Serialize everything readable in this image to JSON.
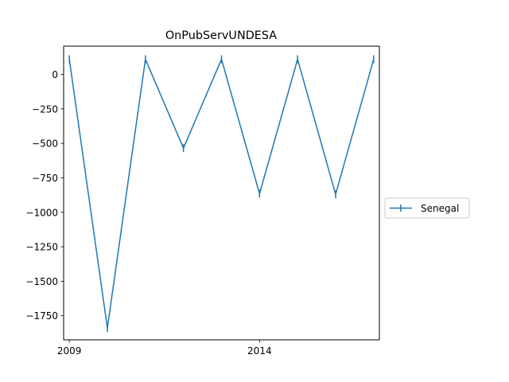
{
  "chart_data": {
    "type": "line",
    "title": "OnPubServUNDESA",
    "xlabel": "",
    "ylabel": "",
    "x": [
      2009,
      2010,
      2011,
      2012,
      2013,
      2014,
      2015,
      2016,
      2017
    ],
    "x_tick_values": [
      2009,
      2014
    ],
    "x_tick_labels": [
      "2009",
      "2014"
    ],
    "y_tick_values": [
      0,
      -250,
      -500,
      -750,
      -1000,
      -1250,
      -1500,
      -1750
    ],
    "y_tick_labels": [
      "0",
      "−250",
      "−500",
      "−750",
      "−1000",
      "−1250",
      "−1500",
      "−1750"
    ],
    "xlim": [
      2008.85,
      2017.15
    ],
    "ylim": [
      -1925,
      205
    ],
    "grid": false,
    "legend_placement": "center-left outside plot (right side)",
    "series": [
      {
        "name": "Senegal",
        "color": "#1f77b4",
        "marker": "vertical-line",
        "values": [
          110,
          -1840,
          110,
          -535,
          110,
          -865,
          110,
          -870,
          110
        ]
      }
    ]
  }
}
